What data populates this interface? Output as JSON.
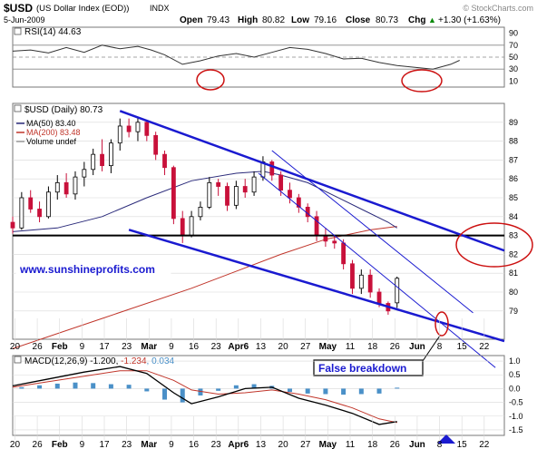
{
  "header": {
    "symbol": "$USD",
    "name": "(US Dollar Index (EOD))",
    "exchange": "INDX",
    "date": "5-Jun-2009",
    "watermark": "© StockCharts.com",
    "open_label": "Open",
    "open": "79.43",
    "high_label": "High",
    "high": "80.82",
    "low_label": "Low",
    "low": "79.16",
    "close_label": "Close",
    "close": "80.73",
    "chg_label": "Chg",
    "chg": "+1.30 (+1.63%)",
    "chg_arrow": "▲"
  },
  "colors": {
    "bull": "#000000",
    "bear": "#c8103a",
    "trend": "#1a1ad0",
    "ma50": "#2a2a7a",
    "ma200": "#c0352a",
    "rsi_line": "#333333",
    "macd_hist": "#4a90c8",
    "ellipse": "#cc1111",
    "grid": "#d8d8d8"
  },
  "chart_data": [
    {
      "type": "line",
      "name": "rsi",
      "label": "RSI(14) 44.63",
      "ylim": [
        0,
        100
      ],
      "yticks": [
        10,
        30,
        50,
        70,
        90
      ],
      "reference_lines": [
        30,
        50,
        70
      ],
      "x": [
        0,
        4,
        8,
        12,
        16,
        20,
        24,
        28,
        31,
        34,
        38,
        42,
        46,
        50,
        54,
        58,
        62,
        66,
        70,
        74,
        78,
        82,
        86,
        90,
        94,
        98,
        100
      ],
      "values": [
        60,
        62,
        57,
        66,
        58,
        70,
        64,
        68,
        62,
        54,
        38,
        44,
        52,
        56,
        50,
        58,
        66,
        63,
        56,
        47,
        48,
        41,
        36,
        33,
        30,
        38,
        44.63
      ]
    },
    {
      "type": "candlestick",
      "name": "price",
      "title": "$USD (Daily) 80.73",
      "ylim": [
        77.5,
        90
      ],
      "yticks": [
        79,
        80,
        81,
        82,
        83,
        84,
        85,
        86,
        87,
        88,
        89
      ],
      "x_axis": [
        "20",
        "26",
        "Feb",
        "9",
        "17",
        "23",
        "Mar",
        "9",
        "16",
        "23",
        "Apr6",
        "13",
        "20",
        "27",
        "May",
        "11",
        "18",
        "26",
        "Jun",
        "8",
        "15",
        "22"
      ],
      "legend": [
        "MA(50) 83.40",
        "MA(200) 83.48",
        "Volume undef"
      ],
      "candles": [
        [
          0,
          83.7,
          84.0,
          83.1,
          83.4
        ],
        [
          2,
          83.4,
          85.3,
          83.3,
          85.0
        ],
        [
          4,
          85.0,
          85.4,
          84.2,
          84.4
        ],
        [
          6,
          84.4,
          84.8,
          83.7,
          84.0
        ],
        [
          8,
          84.0,
          85.6,
          83.9,
          85.3
        ],
        [
          10,
          85.3,
          86.2,
          84.9,
          85.8
        ],
        [
          12,
          85.8,
          86.3,
          85.0,
          85.2
        ],
        [
          14,
          85.2,
          86.4,
          84.9,
          86.1
        ],
        [
          16,
          86.1,
          86.9,
          85.6,
          86.5
        ],
        [
          18,
          86.5,
          87.6,
          86.2,
          87.3
        ],
        [
          20,
          87.3,
          88.1,
          86.4,
          86.7
        ],
        [
          22,
          86.7,
          88.1,
          86.3,
          87.9
        ],
        [
          24,
          87.9,
          89.2,
          87.5,
          88.8
        ],
        [
          26,
          88.8,
          89.2,
          88.2,
          88.5
        ],
        [
          28,
          88.5,
          89.3,
          88.0,
          89.0
        ],
        [
          30,
          89.0,
          89.1,
          88.0,
          88.3
        ],
        [
          32,
          88.3,
          88.5,
          87.0,
          87.3
        ],
        [
          34,
          87.3,
          87.5,
          86.2,
          86.6
        ],
        [
          36,
          86.6,
          86.7,
          83.6,
          83.9
        ],
        [
          38,
          83.9,
          84.3,
          82.6,
          83.0
        ],
        [
          40,
          83.0,
          84.3,
          82.9,
          84.0
        ],
        [
          42,
          84.0,
          84.8,
          83.8,
          84.5
        ],
        [
          44,
          84.5,
          86.1,
          84.4,
          85.8
        ],
        [
          46,
          85.8,
          86.0,
          85.1,
          85.6
        ],
        [
          48,
          85.6,
          85.8,
          84.3,
          84.6
        ],
        [
          50,
          84.6,
          85.9,
          84.4,
          85.6
        ],
        [
          52,
          85.6,
          86.0,
          85.0,
          85.3
        ],
        [
          54,
          85.3,
          86.4,
          85.1,
          86.1
        ],
        [
          56,
          86.1,
          87.2,
          85.9,
          86.9
        ],
        [
          58,
          86.9,
          87.0,
          85.9,
          86.2
        ],
        [
          60,
          86.2,
          86.4,
          85.1,
          85.4
        ],
        [
          62,
          85.4,
          85.8,
          84.7,
          85.0
        ],
        [
          64,
          85.0,
          85.2,
          84.2,
          84.5
        ],
        [
          66,
          84.5,
          84.7,
          83.7,
          84.0
        ],
        [
          68,
          84.0,
          84.3,
          82.7,
          83.0
        ],
        [
          70,
          83.0,
          83.4,
          82.4,
          82.7
        ],
        [
          72,
          82.7,
          83.0,
          82.3,
          82.6
        ],
        [
          74,
          82.6,
          82.8,
          81.2,
          81.5
        ],
        [
          76,
          81.5,
          81.7,
          79.9,
          80.2
        ],
        [
          78,
          80.2,
          81.2,
          79.9,
          80.9
        ],
        [
          80,
          80.9,
          81.2,
          79.7,
          80.0
        ],
        [
          82,
          80.0,
          80.2,
          79.2,
          79.4
        ],
        [
          84,
          79.4,
          79.5,
          78.8,
          79.0
        ],
        [
          86,
          79.43,
          80.82,
          79.16,
          80.73
        ]
      ],
      "ma50": {
        "x": [
          0,
          10,
          20,
          30,
          40,
          50,
          56,
          60,
          66,
          72,
          78,
          84,
          86
        ],
        "values": [
          83.2,
          83.4,
          84.0,
          85.0,
          85.9,
          86.3,
          86.4,
          86.2,
          85.8,
          85.1,
          84.4,
          83.7,
          83.4
        ]
      },
      "ma200": {
        "x": [
          0,
          20,
          40,
          60,
          70,
          80,
          86
        ],
        "values": [
          77.0,
          78.6,
          80.2,
          82.0,
          82.8,
          83.3,
          83.48
        ]
      },
      "annotations": {
        "site": "www.sunshineprofits.com",
        "horizontal_level": 83,
        "upper_trend": {
          "x": [
            24,
            110
          ],
          "values": [
            89.6,
            82.2
          ]
        },
        "lower_trend": {
          "x": [
            26,
            110
          ],
          "values": [
            83.3,
            77.4
          ]
        },
        "inner_upper": {
          "x": [
            58,
            103
          ],
          "values": [
            87.5,
            78.9
          ]
        },
        "inner_lower": {
          "x": [
            55,
            108
          ],
          "values": [
            86.3,
            76.0
          ]
        }
      }
    },
    {
      "type": "line",
      "name": "macd",
      "label": "MACD(12,26,9)",
      "value_macd": "-1.200",
      "value_signal": "-1.234",
      "value_hist": "0.034",
      "ylim": [
        -1.7,
        1.2
      ],
      "yticks": [
        -1.5,
        -1.0,
        -0.5,
        0.0,
        0.5,
        1.0
      ],
      "x_axis": [
        "20",
        "26",
        "Feb",
        "9",
        "17",
        "23",
        "Mar",
        "9",
        "16",
        "23",
        "Apr6",
        "13",
        "20",
        "27",
        "May",
        "11",
        "18",
        "26",
        "Jun",
        "8",
        "15",
        "22"
      ],
      "macd_line": {
        "x": [
          0,
          8,
          16,
          24,
          30,
          36,
          40,
          46,
          52,
          58,
          64,
          70,
          76,
          82,
          86
        ],
        "values": [
          0.1,
          0.35,
          0.6,
          0.8,
          0.55,
          -0.15,
          -0.55,
          -0.3,
          0.0,
          0.05,
          -0.35,
          -0.6,
          -0.9,
          -1.3,
          -1.2
        ]
      },
      "signal_line": {
        "x": [
          0,
          8,
          16,
          24,
          30,
          36,
          40,
          46,
          52,
          58,
          64,
          70,
          76,
          82,
          86
        ],
        "values": [
          0.05,
          0.25,
          0.45,
          0.65,
          0.65,
          0.3,
          -0.05,
          -0.2,
          -0.15,
          -0.05,
          -0.2,
          -0.4,
          -0.7,
          -1.1,
          -1.234
        ]
      },
      "histogram": {
        "x": [
          2,
          6,
          10,
          14,
          18,
          22,
          26,
          30,
          34,
          38,
          42,
          46,
          50,
          54,
          58,
          62,
          66,
          70,
          74,
          78,
          82,
          86
        ],
        "values": [
          0.05,
          0.12,
          0.18,
          0.22,
          0.2,
          0.16,
          0.14,
          -0.1,
          -0.4,
          -0.5,
          -0.25,
          -0.08,
          0.12,
          0.16,
          0.1,
          -0.12,
          -0.18,
          -0.2,
          -0.22,
          -0.2,
          -0.18,
          0.034
        ]
      }
    }
  ],
  "annotations": {
    "false_breakdown": "False breakdown"
  }
}
